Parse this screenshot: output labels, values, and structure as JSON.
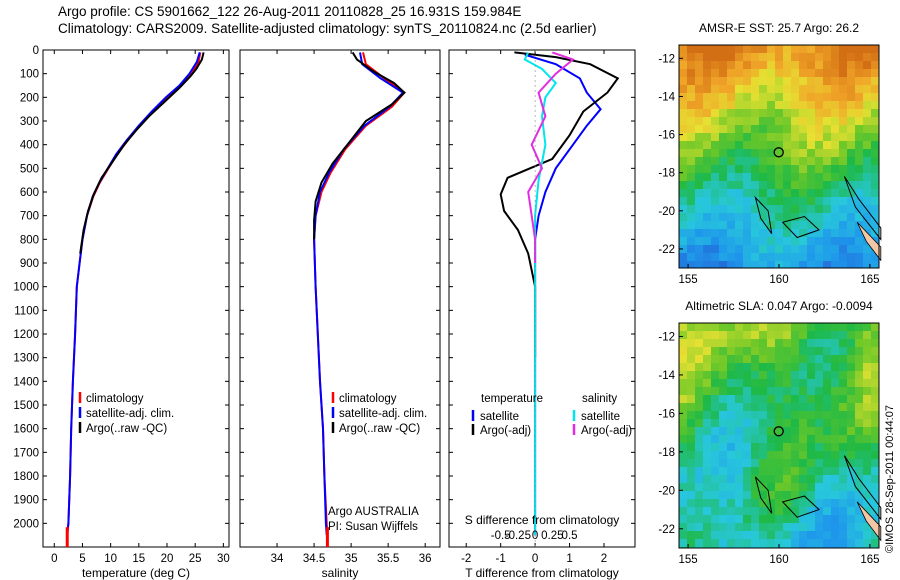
{
  "header": {
    "line1": "Argo profile: CS 5901662_122 26-Aug-2011 20110828_25 16.931S 159.984E",
    "line2": "Climatology: CARS2009. Satellite-adjusted climatology: synTS_20110824.nc (2.5d earlier)"
  },
  "credit": "©IMOS 28-Sep-2011 00:44:07",
  "colors": {
    "climatology": "#ff0000",
    "satellite": "#0000ff",
    "argo": "#000000",
    "sal_satellite": "#00e5ee",
    "sal_argo": "#e02ee0"
  },
  "chart_data": [
    {
      "type": "line",
      "xlabel": "temperature (deg C)",
      "ylabel": "",
      "xlim": [
        -2,
        31
      ],
      "xticks": [
        0,
        5,
        10,
        15,
        20,
        25,
        30
      ],
      "ylim": [
        0,
        2100
      ],
      "yticks": [
        0,
        100,
        200,
        300,
        400,
        500,
        600,
        700,
        800,
        900,
        1000,
        1100,
        1200,
        1300,
        1400,
        1500,
        1600,
        1700,
        1800,
        1900,
        2000
      ],
      "y_reversed": true,
      "legend": [
        "climatology",
        "satellite-adj. clim.",
        "Argo(..raw -QC)"
      ],
      "series": [
        {
          "name": "climatology",
          "color": "#ff0000",
          "points": [
            [
              25.9,
              10
            ],
            [
              25.6,
              50
            ],
            [
              24.4,
              100
            ],
            [
              22.5,
              150
            ],
            [
              20,
              200
            ],
            [
              17.5,
              260
            ],
            [
              15.2,
              320
            ],
            [
              13.1,
              380
            ],
            [
              11.2,
              440
            ],
            [
              9.6,
              500
            ],
            [
              8.1,
              560
            ],
            [
              6.9,
              620
            ],
            [
              5.8,
              700
            ],
            [
              5,
              800
            ],
            [
              4.5,
              900
            ],
            [
              4,
              1000
            ],
            [
              3.7,
              1200
            ],
            [
              3.3,
              1400
            ],
            [
              3,
              1600
            ],
            [
              2.8,
              1800
            ],
            [
              2.5,
              2000
            ],
            [
              2.3,
              2050
            ]
          ]
        },
        {
          "name": "satellite-adj. clim.",
          "color": "#0000ff",
          "points": [
            [
              25.8,
              10
            ],
            [
              25.3,
              50
            ],
            [
              24,
              100
            ],
            [
              22.2,
              150
            ],
            [
              19.8,
              200
            ],
            [
              17.3,
              260
            ],
            [
              15,
              320
            ],
            [
              12.9,
              380
            ],
            [
              11,
              440
            ],
            [
              9.5,
              500
            ],
            [
              8,
              560
            ],
            [
              6.8,
              620
            ],
            [
              5.8,
              700
            ],
            [
              5,
              800
            ],
            [
              4.5,
              900
            ],
            [
              4,
              1000
            ],
            [
              3.7,
              1200
            ],
            [
              3.3,
              1400
            ],
            [
              3,
              1600
            ],
            [
              2.8,
              1800
            ],
            [
              2.5,
              2000
            ],
            [
              2.3,
              2050
            ]
          ]
        },
        {
          "name": "Argo(..raw -QC)",
          "color": "#000000",
          "points": [
            [
              26.5,
              10
            ],
            [
              26.2,
              40
            ],
            [
              25.2,
              80
            ],
            [
              24.2,
              110
            ],
            [
              22.2,
              160
            ],
            [
              19.5,
              220
            ],
            [
              16.8,
              280
            ],
            [
              14.5,
              340
            ],
            [
              12.4,
              400
            ],
            [
              10.4,
              470
            ],
            [
              8.4,
              540
            ],
            [
              7,
              610
            ],
            [
              6,
              680
            ],
            [
              5.2,
              760
            ],
            [
              4.6,
              860
            ]
          ]
        }
      ]
    },
    {
      "type": "line",
      "xlabel": "salinity",
      "xlim": [
        33.5,
        36.2
      ],
      "xticks": [
        34,
        34.5,
        35,
        35.5,
        36
      ],
      "ylim": [
        0,
        2100
      ],
      "y_reversed": true,
      "legend": [
        "climatology",
        "satellite-adj. clim.",
        "Argo(..raw -QC)"
      ],
      "annotation": [
        "Argo AUSTRALIA",
        "PI: Susan Wijffels"
      ],
      "series": [
        {
          "name": "climatology",
          "color": "#ff0000",
          "points": [
            [
              35.16,
              10
            ],
            [
              35.2,
              60
            ],
            [
              35.45,
              120
            ],
            [
              35.72,
              180
            ],
            [
              35.55,
              240
            ],
            [
              35.2,
              320
            ],
            [
              34.92,
              420
            ],
            [
              34.72,
              520
            ],
            [
              34.6,
              600
            ],
            [
              34.52,
              700
            ],
            [
              34.5,
              800
            ],
            [
              34.52,
              1000
            ],
            [
              34.55,
              1200
            ],
            [
              34.58,
              1400
            ],
            [
              34.62,
              1600
            ],
            [
              34.64,
              1800
            ],
            [
              34.67,
              2000
            ],
            [
              34.68,
              2050
            ]
          ]
        },
        {
          "name": "satellite-adj. clim.",
          "color": "#0000ff",
          "points": [
            [
              35.12,
              10
            ],
            [
              35.15,
              60
            ],
            [
              35.4,
              120
            ],
            [
              35.7,
              180
            ],
            [
              35.52,
              240
            ],
            [
              35.18,
              320
            ],
            [
              34.9,
              420
            ],
            [
              34.7,
              520
            ],
            [
              34.58,
              600
            ],
            [
              34.52,
              700
            ],
            [
              34.5,
              800
            ],
            [
              34.52,
              1000
            ],
            [
              34.55,
              1200
            ],
            [
              34.58,
              1400
            ],
            [
              34.62,
              1600
            ],
            [
              34.64,
              1800
            ],
            [
              34.66,
              2000
            ],
            [
              34.67,
              2050
            ]
          ]
        },
        {
          "name": "Argo(..raw -QC)",
          "color": "#000000",
          "points": [
            [
              35.02,
              10
            ],
            [
              35.08,
              40
            ],
            [
              35.3,
              90
            ],
            [
              35.58,
              140
            ],
            [
              35.72,
              180
            ],
            [
              35.55,
              230
            ],
            [
              35.2,
              300
            ],
            [
              34.95,
              400
            ],
            [
              34.75,
              480
            ],
            [
              34.6,
              560
            ],
            [
              34.52,
              640
            ],
            [
              34.5,
              720
            ],
            [
              34.5,
              800
            ]
          ]
        }
      ]
    },
    {
      "type": "line",
      "xlabel": "T difference from climatology",
      "xlabel2": "S difference from climatology",
      "xlim": [
        -2.5,
        2.9
      ],
      "xticks": [
        -2,
        -1,
        0,
        1,
        2
      ],
      "xticks_S": [
        "-0.5",
        "-0.25",
        "0",
        "0.25",
        "0.5"
      ],
      "ylim": [
        0,
        2100
      ],
      "y_reversed": true,
      "legend": [
        "temperature",
        "satellite",
        "Argo(-adj)",
        "salinity",
        "satellite",
        "Argo(-adj)"
      ],
      "series": [
        {
          "name": "satellite",
          "group": "temperature",
          "color": "#0000ff",
          "points": [
            [
              -0.3,
              20
            ],
            [
              0.6,
              60
            ],
            [
              1.3,
              120
            ],
            [
              1.5,
              180
            ],
            [
              1.9,
              250
            ],
            [
              1.5,
              320
            ],
            [
              1.1,
              400
            ],
            [
              0.6,
              500
            ],
            [
              0.3,
              600
            ],
            [
              0.1,
              700
            ],
            [
              0,
              800
            ],
            [
              0,
              1000
            ],
            [
              0,
              1500
            ],
            [
              0,
              2000
            ],
            [
              0,
              2050
            ]
          ]
        },
        {
          "name": "Argo(-adj)",
          "group": "temperature",
          "color": "#000000",
          "points": [
            [
              -0.6,
              10
            ],
            [
              0.6,
              30
            ],
            [
              1.6,
              60
            ],
            [
              2.4,
              120
            ],
            [
              2.1,
              180
            ],
            [
              1.4,
              260
            ],
            [
              1.0,
              360
            ],
            [
              0.5,
              460
            ],
            [
              -0.8,
              540
            ],
            [
              -1.0,
              610
            ],
            [
              -0.9,
              680
            ],
            [
              -0.5,
              760
            ],
            [
              -0.2,
              860
            ],
            [
              0,
              1000
            ],
            [
              0,
              1300
            ]
          ]
        },
        {
          "name": "satellite",
          "group": "salinity",
          "color": "#00e5ee",
          "points": [
            [
              -0.2,
              10
            ],
            [
              -0.3,
              40
            ],
            [
              0.2,
              80
            ],
            [
              0.6,
              140
            ],
            [
              0.3,
              200
            ],
            [
              0.2,
              280
            ],
            [
              0.3,
              400
            ],
            [
              0.1,
              550
            ],
            [
              0,
              700
            ],
            [
              0,
              900
            ],
            [
              0,
              1200
            ],
            [
              0,
              1500
            ],
            [
              0,
              2000
            ],
            [
              0,
              2050
            ]
          ]
        },
        {
          "name": "Argo(-adj)",
          "group": "salinity",
          "color": "#e02ee0",
          "points": [
            [
              0.5,
              10
            ],
            [
              1.1,
              40
            ],
            [
              0.6,
              100
            ],
            [
              0.1,
              180
            ],
            [
              0.3,
              280
            ],
            [
              -0.1,
              400
            ],
            [
              0.2,
              500
            ],
            [
              -0.2,
              600
            ],
            [
              -0.1,
              700
            ],
            [
              0,
              800
            ],
            [
              0,
              900
            ]
          ]
        }
      ]
    },
    {
      "type": "heatmap",
      "title": "AMSR-E SST: 25.7 Argo: 26.2",
      "xticks": [
        155,
        160,
        165
      ],
      "yticks": [
        -12,
        -14,
        -16,
        -18,
        -20,
        -22
      ],
      "xlim": [
        154.5,
        165.5
      ],
      "ylim": [
        -23,
        -11.3
      ],
      "profile_marker": {
        "lon": 159.984,
        "lat": -16.931
      }
    },
    {
      "type": "heatmap",
      "title": "Altimetric SLA: 0.047 Argo: -0.0094",
      "xticks": [
        155,
        160,
        165
      ],
      "yticks": [
        -12,
        -14,
        -16,
        -18,
        -20,
        -22
      ],
      "xlim": [
        154.5,
        165.5
      ],
      "ylim": [
        -23,
        -11.3
      ],
      "profile_marker": {
        "lon": 159.984,
        "lat": -16.931
      }
    }
  ]
}
